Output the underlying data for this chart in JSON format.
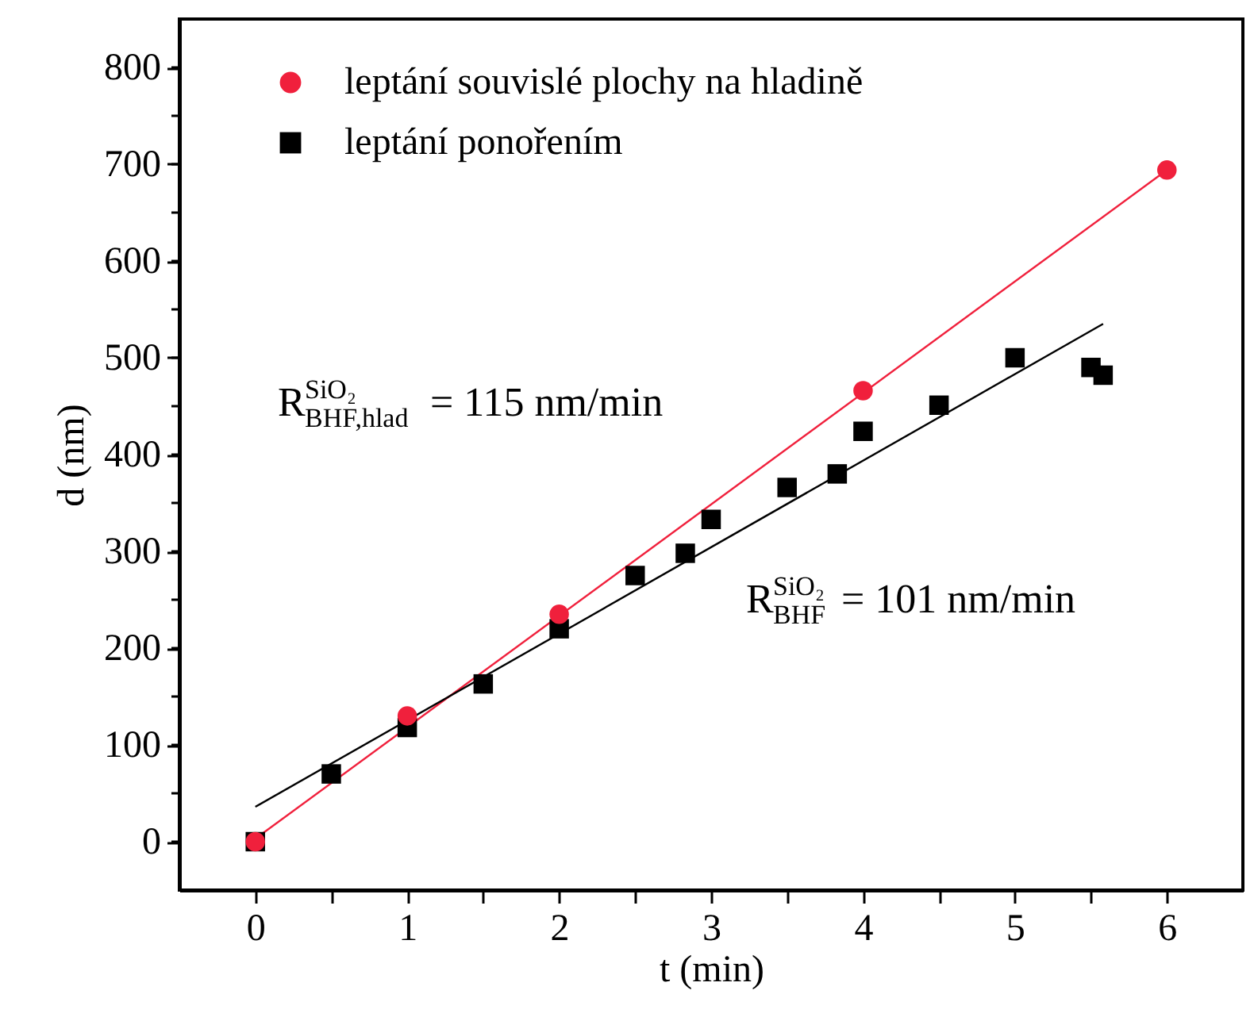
{
  "chart_data": {
    "type": "scatter",
    "xlabel": "t (min)",
    "ylabel": "d (nm)",
    "xlim": [
      -0.5,
      6.5
    ],
    "ylim": [
      -50,
      850
    ],
    "xticks": [
      0,
      {
        "value": 0.5,
        "label": null
      },
      1,
      {
        "value": 1.5,
        "label": null
      },
      2,
      {
        "value": 2.5,
        "label": null
      },
      3,
      {
        "value": 3.5,
        "label": null
      },
      4,
      {
        "value": 4.5,
        "label": null
      },
      5,
      {
        "value": 5.5,
        "label": null
      },
      6
    ],
    "yticks": [
      0,
      {
        "value": 50,
        "label": null
      },
      100,
      {
        "value": 150,
        "label": null
      },
      200,
      {
        "value": 250,
        "label": null
      },
      300,
      {
        "value": 350,
        "label": null
      },
      400,
      {
        "value": 450,
        "label": null
      },
      500,
      {
        "value": 550,
        "label": null
      },
      600,
      {
        "value": 650,
        "label": null
      },
      700,
      {
        "value": 750,
        "label": null
      },
      800
    ],
    "grid": false,
    "legend": "top left",
    "series": [
      {
        "name": "leptání souvislé plochy na hladině",
        "marker": "circle",
        "color": "#f0203c",
        "x": [
          0,
          1,
          2,
          4,
          6
        ],
        "values": [
          0,
          130,
          235,
          466,
          694
        ]
      },
      {
        "name": "leptání ponořením",
        "marker": "square",
        "color": "#000000",
        "x": [
          0,
          0.5,
          1,
          1.5,
          2,
          2.5,
          2.83,
          3,
          3.5,
          3.83,
          4,
          4.5,
          5,
          5.5,
          5.58
        ],
        "values": [
          0,
          70,
          118,
          163,
          220,
          275,
          298,
          333,
          366,
          380,
          424,
          451,
          500,
          490,
          482
        ]
      },
      {
        "type": "line",
        "marker": "none",
        "color": "#f0203c",
        "x": [
          0,
          6
        ],
        "values": [
          3,
          694
        ]
      },
      {
        "type": "line",
        "marker": "none",
        "color": "#000000",
        "x": [
          0,
          5.58
        ],
        "values": [
          36,
          535
        ]
      }
    ],
    "annotations": [
      "R$^{SiO₂}$$_{BHF,hlad}$ = 115 nm/min",
      "R$^{SiO₂}$$_{BHF}$ = 101 nm/min"
    ]
  }
}
